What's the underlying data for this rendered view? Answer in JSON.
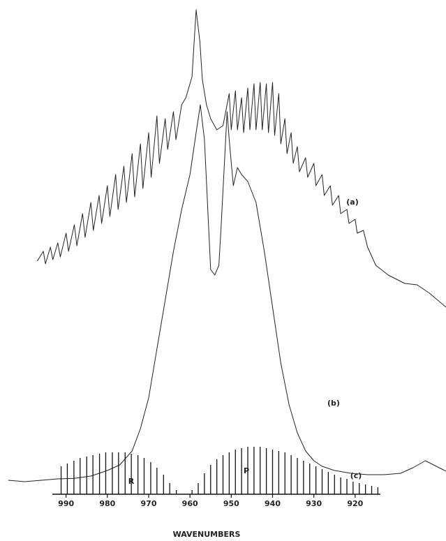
{
  "chart_data": {
    "type": "line",
    "xlabel": "WAVENUMBERS",
    "xlim": [
      1006,
      898
    ],
    "ylim": [
      0,
      150
    ],
    "xticks": [
      990,
      980,
      970,
      960,
      950,
      940,
      930,
      920
    ],
    "annotations": [
      "R",
      "P"
    ],
    "series": [
      {
        "name": "(a)",
        "type": "line",
        "color": "#222222",
        "x": [
          997,
          995.5,
          995,
          993.8,
          993.2,
          992,
          991.4,
          990,
          989.4,
          988,
          987.4,
          986,
          985.4,
          984,
          983.4,
          982,
          981.4,
          980,
          979.4,
          978,
          977.4,
          976,
          975.4,
          974,
          973.4,
          972,
          971.4,
          970,
          969.4,
          968,
          967.4,
          966,
          965.4,
          964,
          963.4,
          962,
          961,
          959.5,
          958.5,
          957.6,
          957,
          956,
          955,
          953.5,
          952,
          950.5,
          950,
          949,
          948.5,
          947.5,
          947,
          946,
          945.5,
          944.5,
          944,
          943,
          942.5,
          941.5,
          941,
          940,
          939.5,
          938.5,
          938,
          937,
          936.5,
          935.5,
          935,
          934,
          933.5,
          932,
          931.5,
          930,
          929.5,
          928,
          927.5,
          926,
          925.5,
          924,
          923.5,
          922,
          921.5,
          920,
          919.5,
          918,
          917,
          915,
          912,
          908,
          905,
          902,
          898
        ],
        "values": [
          19,
          22.5,
          18,
          24,
          19.5,
          25.5,
          20.5,
          29,
          22.5,
          32,
          24.5,
          36,
          27.5,
          40,
          30,
          42.5,
          32.5,
          46,
          35,
          50,
          37.5,
          53,
          40,
          57.5,
          42,
          61,
          45,
          65,
          49,
          71,
          54,
          70,
          59,
          72.5,
          62.5,
          75,
          77.5,
          85,
          109,
          97.5,
          84,
          75,
          70,
          66,
          67.5,
          79,
          66,
          80,
          66,
          77.5,
          65,
          81,
          66,
          82.5,
          66,
          83,
          66,
          82.5,
          65,
          83,
          64,
          79,
          61,
          70,
          57.5,
          65,
          54,
          60,
          51,
          56,
          49,
          54,
          46,
          50,
          42.5,
          46,
          39,
          42.5,
          36,
          37.5,
          32.5,
          34,
          29,
          30,
          24,
          17.5,
          14,
          11,
          10.5,
          7.5,
          2.5
        ]
      },
      {
        "name": "(b)",
        "type": "line",
        "color": "#222222",
        "x": [
          1004,
          1000,
          996,
          992,
          988,
          984,
          980,
          977,
          974,
          972,
          970,
          968,
          966,
          964,
          962,
          960,
          958.5,
          957.5,
          956.5,
          956,
          955,
          954,
          953,
          952.5,
          951,
          950.5,
          949.5,
          948.5,
          947.5,
          946,
          944,
          942,
          940,
          938,
          936,
          934,
          932,
          930,
          928,
          925,
          921,
          917,
          913,
          909,
          906,
          903,
          901,
          899,
          898
        ],
        "values": [
          0.5,
          0,
          0.5,
          1,
          1.2,
          2,
          4,
          6,
          11,
          19,
          30,
          47.5,
          65,
          82.5,
          97.5,
          110,
          125,
          135,
          122.5,
          107.5,
          76,
          74,
          77.5,
          90,
          132.5,
          122.5,
          106,
          112.5,
          110,
          107.5,
          100,
          82.5,
          62.5,
          42.5,
          27.5,
          17.5,
          11,
          7.5,
          5.5,
          4,
          3,
          2.5,
          2.5,
          3,
          5,
          7.5,
          6,
          4.5,
          3.75
        ]
      },
      {
        "name": "(c)",
        "type": "stick",
        "color": "#111111",
        "x": [
          991.2,
          989.7,
          988.1,
          986.6,
          985.0,
          983.5,
          981.9,
          980.4,
          978.8,
          977.3,
          975.7,
          974.2,
          972.6,
          971.1,
          969.5,
          968.0,
          966.4,
          964.9,
          963.3,
          959.5,
          958,
          956.5,
          955,
          953.5,
          952,
          950.5,
          949,
          947.5,
          946,
          944.5,
          943,
          941.5,
          940,
          938.5,
          937,
          935.5,
          934,
          932.5,
          931,
          929.5,
          928,
          926.5,
          925,
          923.5,
          922,
          920.5,
          919,
          917.5,
          916,
          914.5
        ],
        "values": [
          10,
          11,
          12,
          13,
          13.5,
          14,
          14.5,
          15,
          15,
          15,
          15,
          14.5,
          14,
          13,
          11.5,
          9.5,
          7,
          4,
          1.5,
          1.5,
          4,
          7.5,
          10.5,
          12.5,
          14,
          15,
          16,
          16.5,
          17,
          17,
          17,
          16.5,
          16,
          15.5,
          15,
          14,
          13,
          12,
          11,
          10,
          9,
          8,
          7,
          6,
          5.5,
          4.5,
          4,
          3.5,
          3,
          2.5
        ]
      }
    ]
  }
}
